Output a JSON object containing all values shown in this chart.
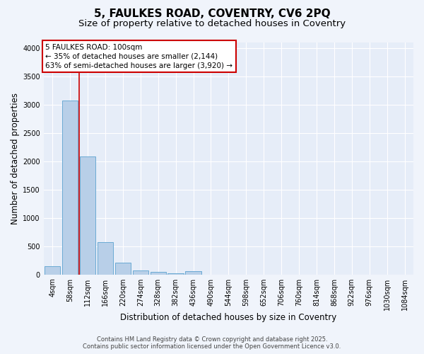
{
  "title": "5, FAULKES ROAD, COVENTRY, CV6 2PQ",
  "subtitle": "Size of property relative to detached houses in Coventry",
  "xlabel": "Distribution of detached houses by size in Coventry",
  "ylabel": "Number of detached properties",
  "footer_line1": "Contains HM Land Registry data © Crown copyright and database right 2025.",
  "footer_line2": "Contains public sector information licensed under the Open Government Licence v3.0.",
  "bin_labels": [
    "4sqm",
    "58sqm",
    "112sqm",
    "166sqm",
    "220sqm",
    "274sqm",
    "328sqm",
    "382sqm",
    "436sqm",
    "490sqm",
    "544sqm",
    "598sqm",
    "652sqm",
    "706sqm",
    "760sqm",
    "814sqm",
    "868sqm",
    "922sqm",
    "976sqm",
    "1030sqm",
    "1084sqm"
  ],
  "bar_values": [
    150,
    3080,
    2090,
    570,
    210,
    70,
    45,
    25,
    55,
    0,
    0,
    0,
    0,
    0,
    0,
    0,
    0,
    0,
    0,
    0,
    0
  ],
  "bar_color": "#b8cfe8",
  "bar_edge_color": "#6aaad4",
  "vline_x_index": 1.5,
  "vline_color": "#cc0000",
  "annotation_title": "5 FAULKES ROAD: 100sqm",
  "annotation_line1": "← 35% of detached houses are smaller (2,144)",
  "annotation_line2": "63% of semi-detached houses are larger (3,920) →",
  "annotation_box_color": "#cc0000",
  "ylim": [
    0,
    4100
  ],
  "yticks": [
    0,
    500,
    1000,
    1500,
    2000,
    2500,
    3000,
    3500,
    4000
  ],
  "bg_color": "#f0f4fb",
  "plot_bg_color": "#e6edf8",
  "grid_color": "#ffffff",
  "title_fontsize": 11,
  "subtitle_fontsize": 9.5,
  "axis_label_fontsize": 8.5,
  "tick_fontsize": 7,
  "annotation_fontsize": 7.5,
  "footer_fontsize": 6
}
